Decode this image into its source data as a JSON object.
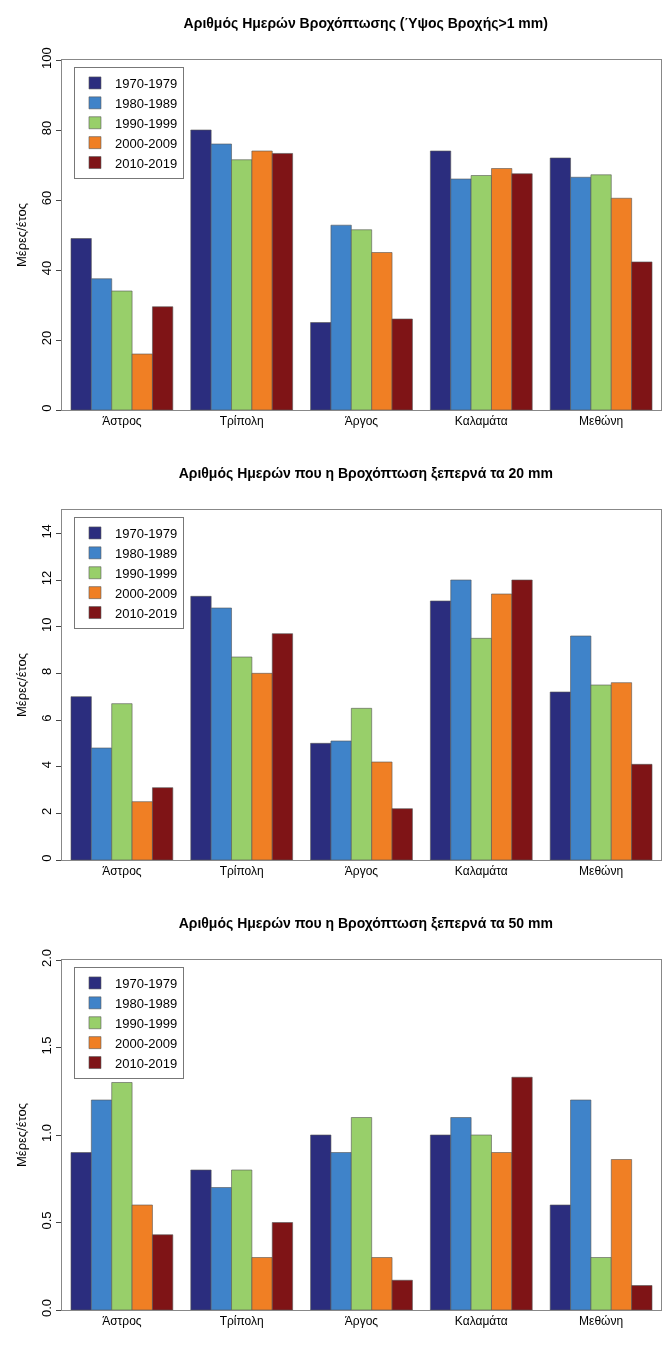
{
  "chart_data": [
    {
      "type": "bar",
      "title": "Αριθμός Ημερών Βροχόπτωσης (Ύψος Βροχής>1 mm)",
      "ylabel": "Μέρες/έτος",
      "categories": [
        "Άστρος",
        "Τρίπολη",
        "Άργος",
        "Καλαμάτα",
        "Μεθώνη"
      ],
      "ylim": [
        0,
        100
      ],
      "yticks": [
        0,
        20,
        40,
        60,
        80,
        100
      ],
      "grid": false,
      "legend": "top left",
      "series": [
        {
          "name": "1970-1979",
          "color": "#2b2d7e",
          "values": [
            49,
            80,
            25,
            74,
            72
          ]
        },
        {
          "name": "1980-1989",
          "color": "#3f83c9",
          "values": [
            37.5,
            76,
            52.8,
            66,
            66.5
          ]
        },
        {
          "name": "1990-1999",
          "color": "#98cf6a",
          "values": [
            34,
            71.5,
            51.5,
            67,
            67.2
          ]
        },
        {
          "name": "2000-2009",
          "color": "#f07f24",
          "values": [
            16,
            74,
            45,
            69,
            60.5
          ]
        },
        {
          "name": "2010-2019",
          "color": "#7f1416",
          "values": [
            29.5,
            73.3,
            26,
            67.5,
            42.3
          ]
        }
      ]
    },
    {
      "type": "bar",
      "title": "Αριθμός Ημερών που η Βροχόπτωση ξεπερνά τα 20 mm",
      "ylabel": "Μέρες/έτος",
      "categories": [
        "Άστρος",
        "Τρίπολη",
        "Άργος",
        "Καλαμάτα",
        "Μεθώνη"
      ],
      "ylim": [
        0,
        15
      ],
      "yticks": [
        0,
        2,
        4,
        6,
        8,
        10,
        12,
        14
      ],
      "grid": false,
      "legend": "top left",
      "series": [
        {
          "name": "1970-1979",
          "color": "#2b2d7e",
          "values": [
            7.0,
            11.3,
            5.0,
            11.1,
            7.2
          ]
        },
        {
          "name": "1980-1989",
          "color": "#3f83c9",
          "values": [
            4.8,
            10.8,
            5.1,
            12.0,
            9.6
          ]
        },
        {
          "name": "1990-1999",
          "color": "#98cf6a",
          "values": [
            6.7,
            8.7,
            6.5,
            9.5,
            7.5
          ]
        },
        {
          "name": "2000-2009",
          "color": "#f07f24",
          "values": [
            2.5,
            8.0,
            4.2,
            11.4,
            7.6
          ]
        },
        {
          "name": "2010-2019",
          "color": "#7f1416",
          "values": [
            3.1,
            9.7,
            2.2,
            12.0,
            4.1
          ]
        }
      ]
    },
    {
      "type": "bar",
      "title": "Αριθμός Ημερών που η Βροχόπτωση ξεπερνά τα 50 mm",
      "ylabel": "Μέρες/έτος",
      "categories": [
        "Άστρος",
        "Τρίπολη",
        "Άργος",
        "Καλαμάτα",
        "Μεθώνη"
      ],
      "ylim": [
        0,
        2
      ],
      "yticks": [
        {
          "value": 0,
          "label": "0.0"
        },
        {
          "value": 0.5,
          "label": "0.5"
        },
        {
          "value": 1,
          "label": "1.0"
        },
        {
          "value": 1.5,
          "label": "1.5"
        },
        {
          "value": 2,
          "label": "2.0"
        }
      ],
      "grid": false,
      "legend": "top left",
      "series": [
        {
          "name": "1970-1979",
          "color": "#2b2d7e",
          "values": [
            0.9,
            0.8,
            1.0,
            1.0,
            0.6
          ]
        },
        {
          "name": "1980-1989",
          "color": "#3f83c9",
          "values": [
            1.2,
            0.7,
            0.9,
            1.1,
            1.2
          ]
        },
        {
          "name": "1990-1999",
          "color": "#98cf6a",
          "values": [
            1.3,
            0.8,
            1.1,
            1.0,
            0.3
          ]
        },
        {
          "name": "2000-2009",
          "color": "#f07f24",
          "values": [
            0.6,
            0.3,
            0.3,
            0.9,
            0.86
          ]
        },
        {
          "name": "2010-2019",
          "color": "#7f1416",
          "values": [
            0.43,
            0.5,
            0.17,
            1.33,
            0.14
          ]
        }
      ]
    }
  ]
}
